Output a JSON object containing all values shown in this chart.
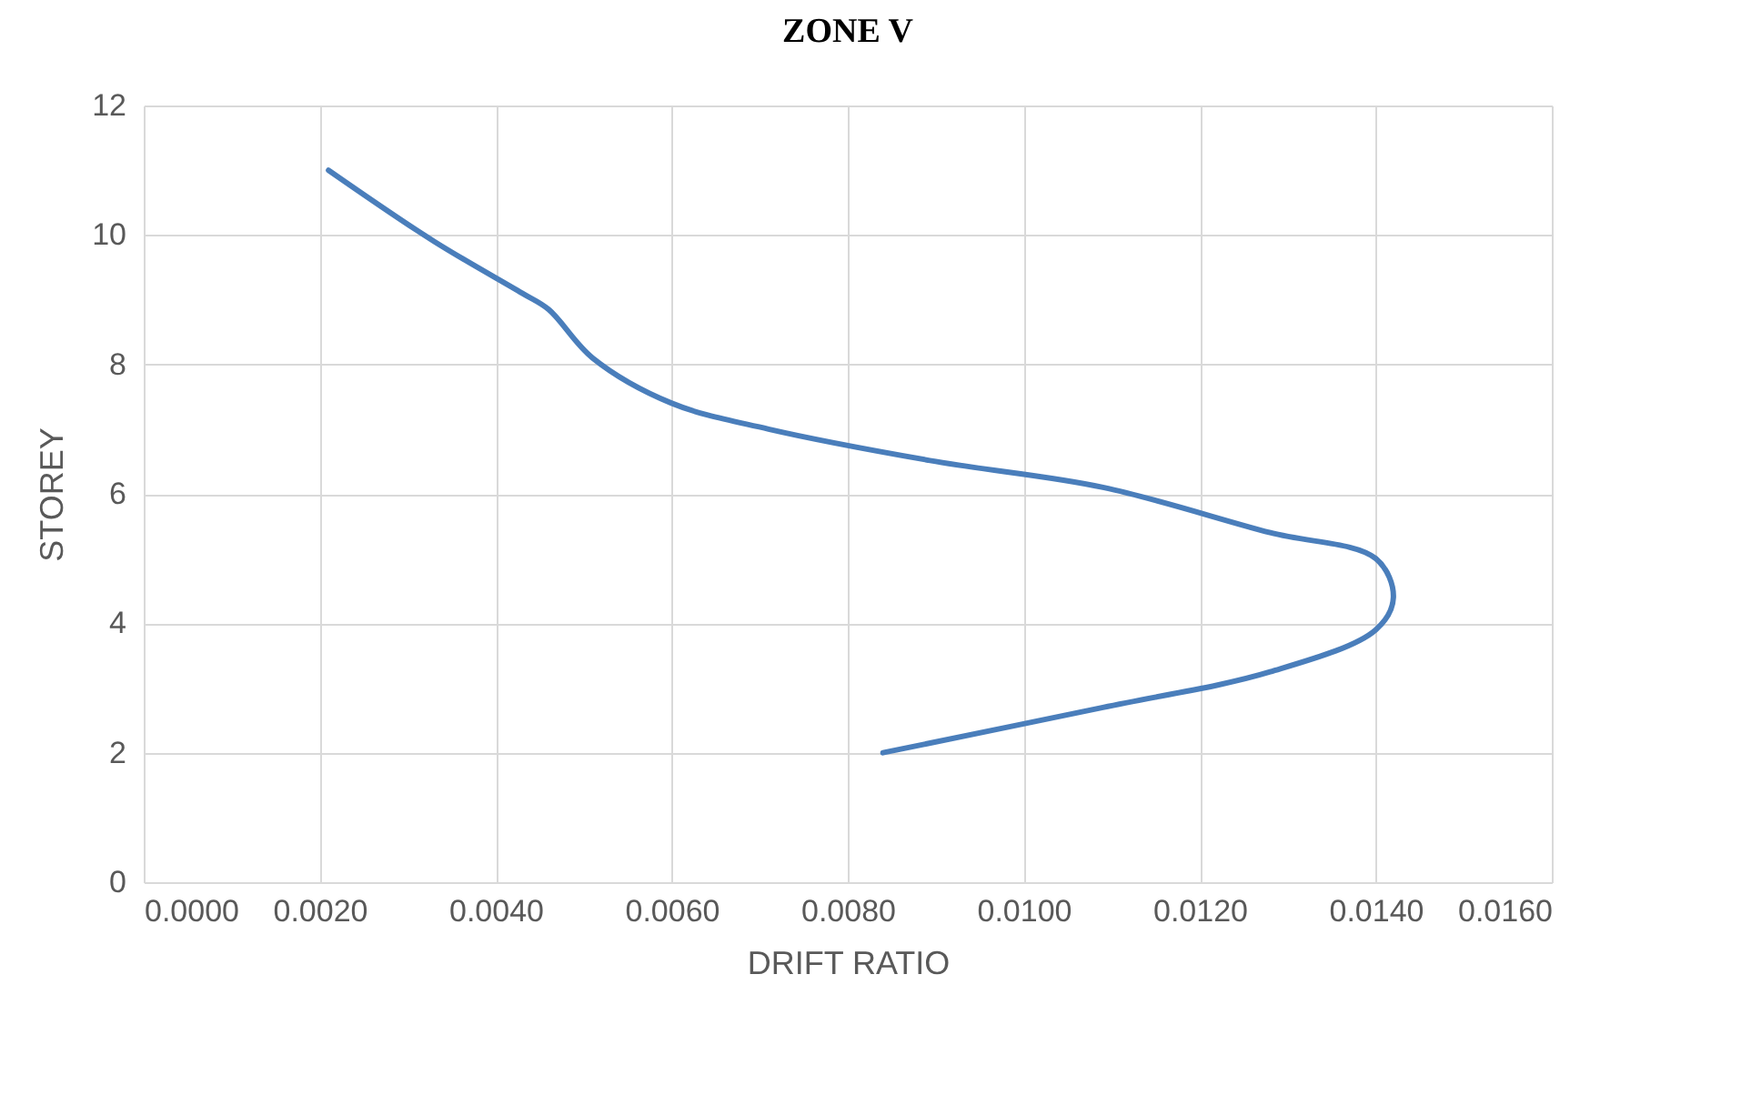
{
  "chart_data": {
    "type": "line",
    "title": "ZONE V",
    "xlabel": "DRIFT RATIO",
    "ylabel": "STOREY",
    "x": [
      0.0021,
      0.0033,
      0.0043,
      0.0046,
      0.0051,
      0.006,
      0.0071,
      0.009,
      0.0109,
      0.0128,
      0.014,
      0.0142,
      0.014,
      0.0128,
      0.0109,
      0.0084
    ],
    "series": [
      {
        "color": "#4a7ebb",
        "values": [
          11.0,
          9.9,
          9.1,
          8.85,
          8.1,
          7.4,
          7.0,
          6.5,
          6.1,
          5.4,
          5.0,
          4.4,
          3.9,
          3.25,
          2.7,
          2.0
        ]
      }
    ],
    "xlim": [
      0,
      0.016
    ],
    "xticks": [
      {
        "value": 0,
        "label": "0.0000"
      },
      {
        "value": 0.002,
        "label": "0.0020"
      },
      {
        "value": 0.004,
        "label": "0.0040"
      },
      {
        "value": 0.006,
        "label": "0.0060"
      },
      {
        "value": 0.008,
        "label": "0.0080"
      },
      {
        "value": 0.01,
        "label": "0.0100"
      },
      {
        "value": 0.012,
        "label": "0.0120"
      },
      {
        "value": 0.014,
        "label": "0.0140"
      },
      {
        "value": 0.016,
        "label": "0.0160"
      }
    ],
    "ylim": [
      0,
      12
    ],
    "yticks": [
      0,
      2,
      4,
      6,
      8,
      10,
      12
    ],
    "grid": true,
    "line_style": "solid",
    "marker": "none"
  }
}
